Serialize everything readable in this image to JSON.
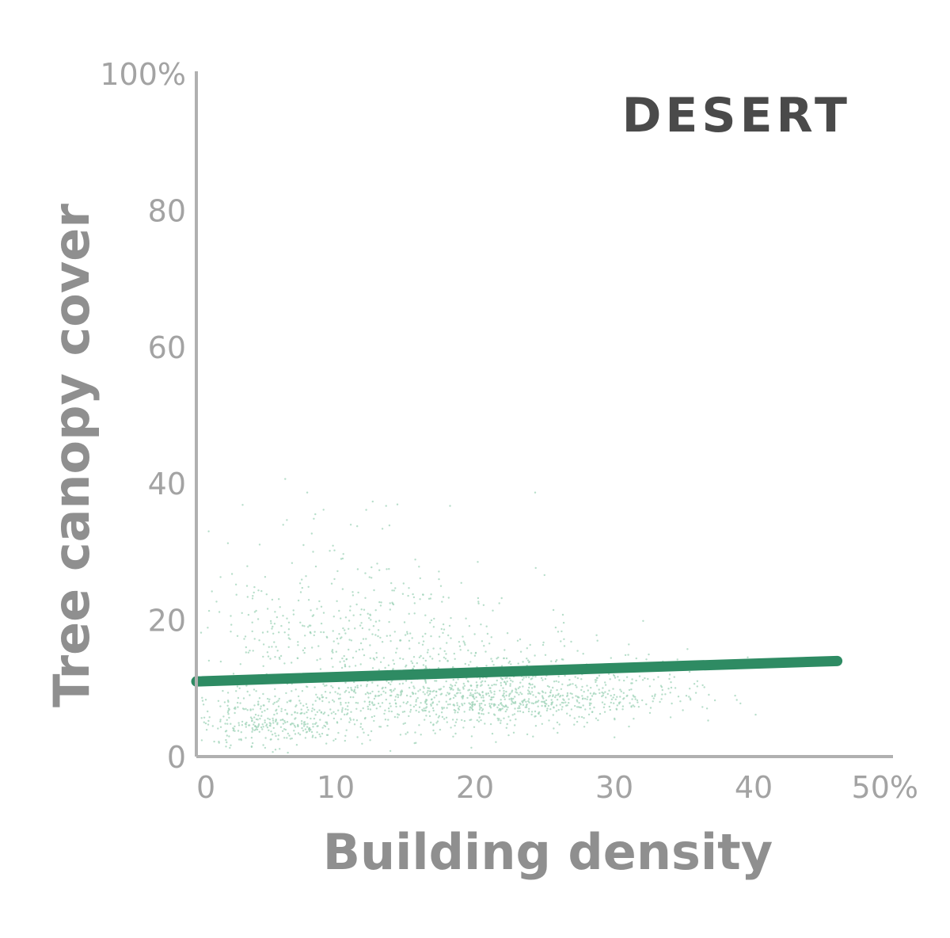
{
  "chart_data": {
    "type": "scatter",
    "title": "DESERT",
    "xlabel": "Building density",
    "ylabel": "Tree canopy cover",
    "xlim": [
      0,
      50
    ],
    "ylim": [
      0,
      100
    ],
    "x_ticks": [
      0,
      10,
      20,
      30,
      40,
      50
    ],
    "x_tick_labels": [
      "0",
      "10",
      "20",
      "30",
      "40",
      "50%"
    ],
    "y_ticks": [
      0,
      20,
      40,
      60,
      80,
      100
    ],
    "y_tick_labels": [
      "0",
      "20",
      "40",
      "60",
      "80",
      "100%"
    ],
    "grid": false,
    "legend": "none",
    "colors": {
      "points": "#9fd3b8",
      "trend": "#2e8b63",
      "axis": "#b0b0b0"
    },
    "series": [
      {
        "kind": "points",
        "clusters": [
          {
            "center_x": 5,
            "center_y": 5,
            "spread_x": 3,
            "spread_y": 4
          },
          {
            "center_x": 12,
            "center_y": 8,
            "spread_x": 5,
            "spread_y": 7
          },
          {
            "center_x": 18,
            "center_y": 10,
            "spread_x": 5,
            "spread_y": 6
          },
          {
            "center_x": 22,
            "center_y": 8,
            "spread_x": 4,
            "spread_y": 4
          },
          {
            "center_x": 10,
            "center_y": 20,
            "spread_x": 6,
            "spread_y": 9
          },
          {
            "center_x": 28,
            "center_y": 9,
            "spread_x": 5,
            "spread_y": 4
          }
        ]
      },
      {
        "kind": "trend",
        "x": [
          0,
          46
        ],
        "y": [
          11,
          14
        ]
      }
    ]
  }
}
